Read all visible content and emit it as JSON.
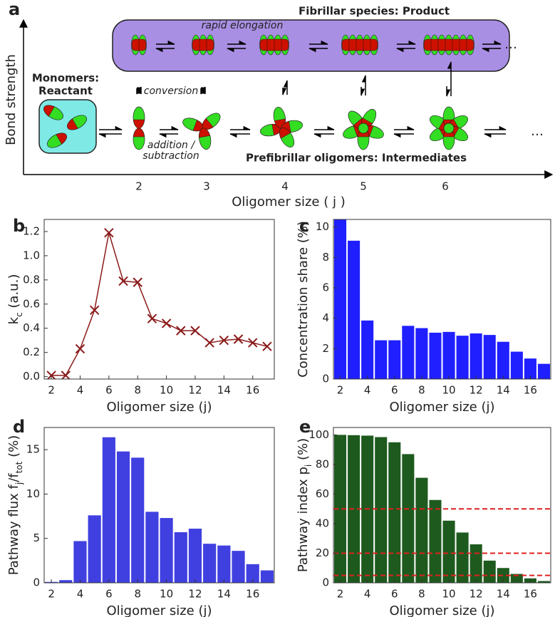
{
  "diagram": {
    "panel": "a",
    "y_axis_label": "Bond strength",
    "x_axis_label": "Oligomer size ( j )",
    "x_ticks": [
      2,
      3,
      4,
      5,
      6
    ],
    "product_label": "Fibrillar species: Product",
    "elongation_label": "rapid elongation",
    "reactant_label": [
      "Monomers:",
      "Reactant"
    ],
    "conversion_label": "conversion",
    "exchange_label": [
      "addition /",
      "subtraction"
    ],
    "intermediates_label": "Prefibrillar oligomers: Intermediates",
    "product_ellipsis": "…",
    "intermediates_ellipsis": "…"
  },
  "chart_data": [
    {
      "type": "line",
      "panel": "b",
      "marker": "x",
      "color": "#8b1a1a",
      "xlabel": "Oligomer size (j)",
      "ylabel": [
        {
          "text": "k"
        },
        {
          "text": "c",
          "sub": true
        },
        {
          "text": " (a.u.)"
        }
      ],
      "x": [
        2,
        3,
        4,
        5,
        6,
        7,
        8,
        9,
        10,
        11,
        12,
        13,
        14,
        15,
        16,
        17
      ],
      "values": [
        0.01,
        0.01,
        0.23,
        0.55,
        1.19,
        0.79,
        0.78,
        0.48,
        0.44,
        0.38,
        0.38,
        0.28,
        0.3,
        0.31,
        0.28,
        0.25
      ],
      "xlim": [
        1.5,
        17.5
      ],
      "xticks": [
        2,
        4,
        6,
        8,
        10,
        12,
        14,
        16
      ],
      "ylim": [
        -0.02,
        1.3
      ],
      "yticks": [
        {
          "value": 0,
          "label": "0.0"
        },
        0.2,
        0.4,
        0.6,
        0.8,
        {
          "value": 1,
          "label": "1.0"
        },
        1.2
      ]
    },
    {
      "type": "bar",
      "panel": "c",
      "color": "#1f1fff",
      "xlabel": "Oligomer size (j)",
      "ylabel": [
        {
          "text": "Concentration share (%)"
        }
      ],
      "x": [
        2,
        3,
        4,
        5,
        6,
        7,
        8,
        9,
        10,
        11,
        12,
        13,
        14,
        15,
        16,
        17
      ],
      "values": [
        10.5,
        9.1,
        3.85,
        2.55,
        2.55,
        3.5,
        3.35,
        3.05,
        3.1,
        2.85,
        3.0,
        2.9,
        2.45,
        1.8,
        1.35,
        1.0
      ],
      "xlim": [
        1.5,
        17.5
      ],
      "xticks": [
        2,
        4,
        6,
        8,
        10,
        12,
        14,
        16
      ],
      "ylim": [
        0,
        10.5
      ],
      "yticks": [
        0,
        2,
        4,
        6,
        8,
        10
      ]
    },
    {
      "type": "bar",
      "panel": "d",
      "color": "#4040e0",
      "xlabel": "Oligomer size (j)",
      "ylabel": [
        {
          "text": "Pathway flux f"
        },
        {
          "text": "j",
          "sub": true
        },
        {
          "text": "/f"
        },
        {
          "text": "tot",
          "sub": true
        },
        {
          "text": " (%)"
        }
      ],
      "x": [
        2,
        3,
        4,
        5,
        6,
        7,
        8,
        9,
        10,
        11,
        12,
        13,
        14,
        15,
        16,
        17
      ],
      "values": [
        0.1,
        0.3,
        4.7,
        7.6,
        16.4,
        14.8,
        14.1,
        8.0,
        7.3,
        5.7,
        6.1,
        4.4,
        4.2,
        3.6,
        2.1,
        1.4
      ],
      "xlim": [
        1.5,
        17.5
      ],
      "xticks": [
        2,
        4,
        6,
        8,
        10,
        12,
        14,
        16
      ],
      "ylim": [
        0,
        17.5
      ],
      "yticks": [
        0,
        5,
        10,
        15
      ]
    },
    {
      "type": "bar",
      "panel": "e",
      "color": "#1e5a1e",
      "xlabel": "Oligomer size (j)",
      "ylabel": [
        {
          "text": "Pathway index p"
        },
        {
          "text": "i",
          "sub": true
        },
        {
          "text": " (%)"
        }
      ],
      "x": [
        2,
        3,
        4,
        5,
        6,
        7,
        8,
        9,
        10,
        11,
        12,
        13,
        14,
        15,
        16,
        17
      ],
      "values": [
        100,
        99.8,
        99.5,
        98.5,
        95,
        87,
        71,
        56,
        42,
        34,
        26,
        15,
        10,
        6,
        3,
        1.2
      ],
      "xlim": [
        1.5,
        17.5
      ],
      "xticks": [
        2,
        4,
        6,
        8,
        10,
        12,
        14,
        16
      ],
      "ylim": [
        0,
        105
      ],
      "yticks": [
        0,
        20,
        40,
        60,
        80,
        100
      ],
      "reference_lines": [
        50,
        20,
        5
      ],
      "reference_color": "#e02020"
    }
  ]
}
